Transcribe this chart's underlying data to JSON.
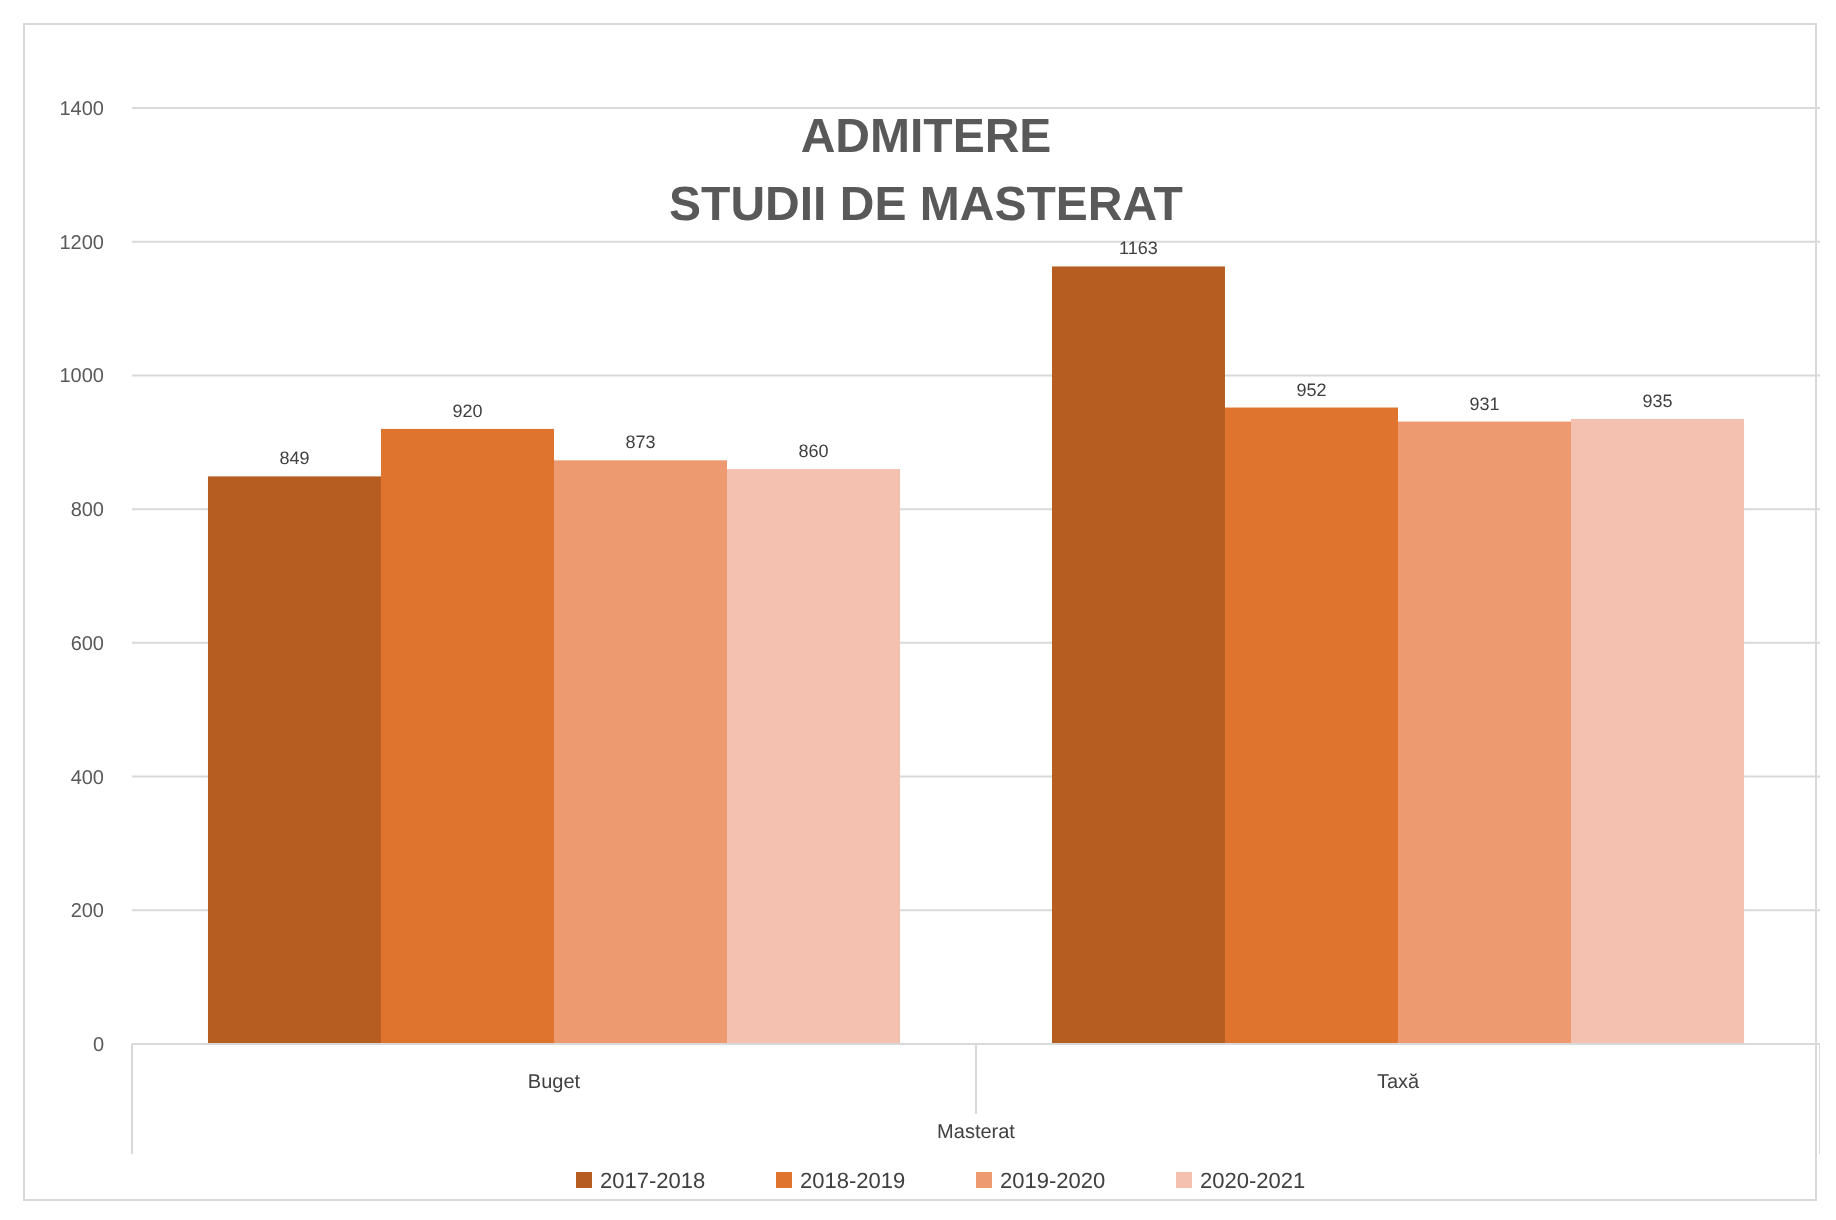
{
  "chart_data": {
    "type": "bar",
    "title": "ADMITERE\nSTUDII DE MASTERAT",
    "xlabel": "Masterat",
    "categories": [
      "Buget",
      "Taxă"
    ],
    "series": [
      {
        "name": "2017-2018",
        "color": "#b65e22",
        "values": [
          849,
          1163
        ]
      },
      {
        "name": "2018-2019",
        "color": "#de742e",
        "values": [
          920,
          952
        ]
      },
      {
        "name": "2019-2020",
        "color": "#ee9a71",
        "values": [
          873,
          931
        ]
      },
      {
        "name": "2020-2021",
        "color": "#f4c1b0",
        "values": [
          860,
          935
        ]
      }
    ],
    "ylim": [
      0,
      1400
    ],
    "yticks": [
      0,
      200,
      400,
      600,
      800,
      1000,
      1200,
      1400
    ],
    "grid": "y",
    "legend": "bottom",
    "data_labels": true
  }
}
